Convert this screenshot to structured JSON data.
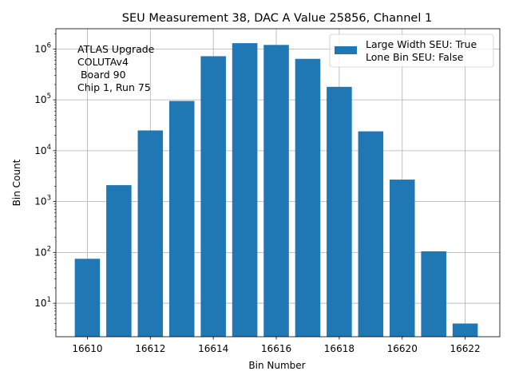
{
  "chart_data": {
    "type": "bar",
    "title": "SEU Measurement 38, DAC A Value 25856, Channel 1",
    "xlabel": "Bin Number",
    "ylabel": "Bin Count",
    "yscale": "log",
    "xlim": [
      16609.0,
      16623.1
    ],
    "ylim": [
      2.2,
      2500000
    ],
    "grid": true,
    "bar_color": "#1f77b4",
    "x": [
      16610,
      16611,
      16612,
      16613,
      16614,
      16615,
      16616,
      16617,
      16618,
      16619,
      16620,
      16621,
      16622
    ],
    "values": [
      75,
      2100,
      25000,
      95000,
      720000,
      1300000,
      1200000,
      640000,
      180000,
      24000,
      2700,
      105,
      4
    ],
    "x_ticks": [
      16610,
      16612,
      16614,
      16616,
      16618,
      16620,
      16622
    ],
    "y_ticks": [
      {
        "value": 10,
        "mantissa": "10",
        "exp": "1"
      },
      {
        "value": 100,
        "mantissa": "10",
        "exp": "2"
      },
      {
        "value": 1000,
        "mantissa": "10",
        "exp": "3"
      },
      {
        "value": 10000,
        "mantissa": "10",
        "exp": "4"
      },
      {
        "value": 100000,
        "mantissa": "10",
        "exp": "5"
      },
      {
        "value": 1000000,
        "mantissa": "10",
        "exp": "6"
      }
    ],
    "annotation": [
      "ATLAS Upgrade",
      "COLUTAv4",
      " Board 90",
      "Chip 1, Run 75"
    ],
    "legend": {
      "placement": "top-right",
      "lines": [
        "Large Width SEU: True",
        "Lone Bin SEU: False"
      ]
    }
  }
}
